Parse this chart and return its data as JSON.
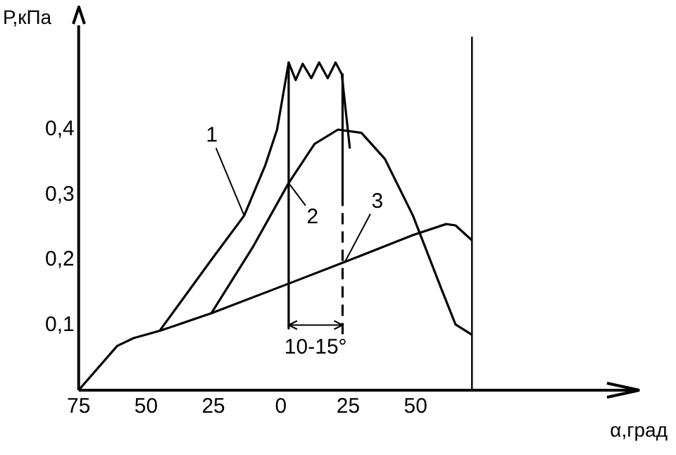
{
  "chart_data": {
    "type": "line",
    "xlabel": "α,град",
    "ylabel": "Р,кПа",
    "xlim": [
      -75,
      133
    ],
    "ylim": [
      0,
      0.56
    ],
    "xticks": [
      {
        "value": -75,
        "label": "75"
      },
      {
        "value": -50,
        "label": "50"
      },
      {
        "value": -25,
        "label": "25"
      },
      0,
      25,
      50
    ],
    "yticks": [
      {
        "value": 0.1,
        "label": "0,1"
      },
      {
        "value": 0.2,
        "label": "0,2"
      },
      {
        "value": 0.3,
        "label": "0,3"
      },
      {
        "value": 0.4,
        "label": "0,4"
      }
    ],
    "grid": false,
    "marker": "none",
    "line_style": "solid",
    "series": [
      {
        "name": "1",
        "color": "#000000",
        "x": [
          -45,
          -25.8,
          -13.6,
          -5.8,
          -1.4,
          2.9,
          5.5,
          8.1,
          11.3,
          14.2,
          17.4,
          20.3,
          22.6,
          25.6
        ],
        "values": [
          0.091,
          0.2,
          0.268,
          0.345,
          0.4,
          0.503,
          0.476,
          0.501,
          0.479,
          0.503,
          0.479,
          0.503,
          0.485,
          0.371
        ]
      },
      {
        "name": "2",
        "color": "#000000",
        "x": [
          -25.8,
          -10.2,
          2.9,
          12.5,
          21.2,
          29.9,
          38.6,
          49,
          59.6,
          64.8,
          70.9
        ],
        "values": [
          0.118,
          0.221,
          0.318,
          0.378,
          0.4,
          0.395,
          0.355,
          0.268,
          0.155,
          0.101,
          0.085
        ]
      },
      {
        "name": "3",
        "color": "#000000",
        "x": [
          -75,
          -60.7,
          -54.6,
          -45,
          -25.8,
          3.8,
          23.8,
          49,
          61.3,
          64.8,
          70.9
        ],
        "values": [
          0,
          0.068,
          0.08,
          0.091,
          0.118,
          0.165,
          0.197,
          0.238,
          0.255,
          0.253,
          0.23
        ]
      },
      {
        "color": "#000000",
        "x": [
          2.9,
          2.9
        ],
        "values": [
          0.503,
          0.095
        ]
      },
      {
        "color": "#000000",
        "x": [
          22.9,
          22.9
        ],
        "values": [
          0.485,
          0.3
        ]
      },
      {
        "color": "#000000",
        "line_style": "dashed",
        "x": [
          22.9,
          22.9
        ],
        "values": [
          0.3,
          0.08
        ]
      }
    ],
    "ref_lines": [
      {
        "axis": "x",
        "value": 70.9,
        "color": "#000000"
      }
    ],
    "annotations": [
      "10-15°"
    ]
  }
}
